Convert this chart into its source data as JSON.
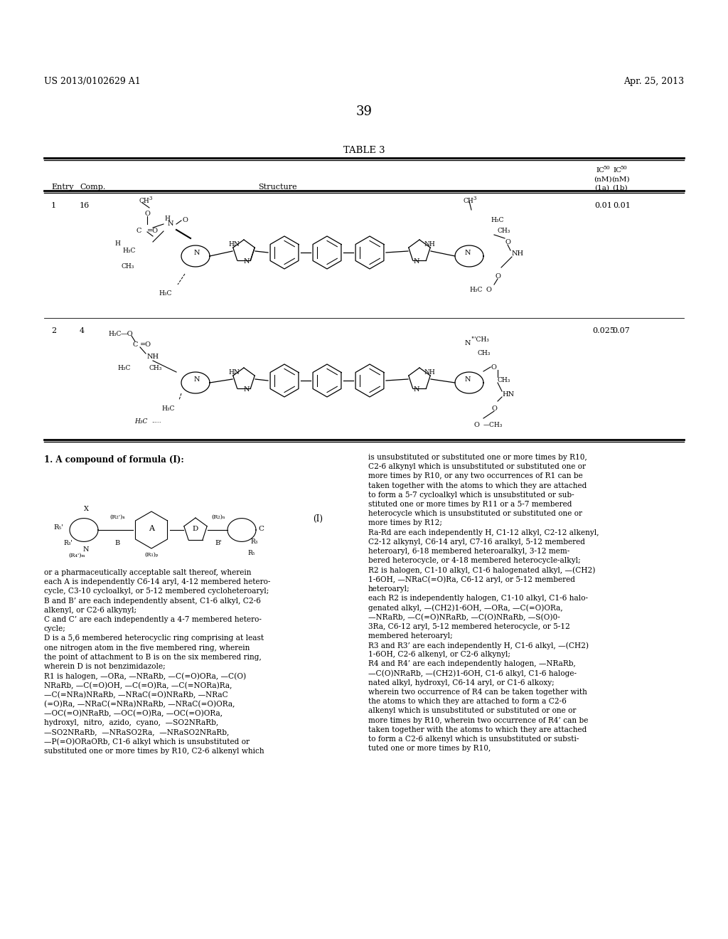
{
  "page_number": "39",
  "patent_number": "US 2013/0102629 A1",
  "patent_date": "Apr. 25, 2013",
  "table_title": "TABLE 3",
  "background_color": "#ffffff",
  "text_color": "#000000",
  "row1_entry": "1",
  "row1_comp": "16",
  "row1_ic50_1a": "0.01",
  "row1_ic50_1b": "0.01",
  "row2_entry": "2",
  "row2_comp": "4",
  "row2_ic50_1a": "0.025",
  "row2_ic50_1b": "0.07",
  "claim_title": "1. A compound of formula (I):",
  "formula_label": "(I)",
  "col1_lines": [
    "or a pharmaceutically acceptable salt thereof, wherein",
    "each A is independently C6-14 aryl, 4-12 membered hetero-",
    "cycle, C3-10 cycloalkyl, or 5-12 membered cycloheteroaryl;",
    "B and B’ are each independently absent, C1-6 alkyl, C2-6",
    "alkenyl, or C2-6 alkynyl;",
    "C and C’ are each independently a 4-7 membered hetero-",
    "cycle;",
    "D is a 5,6 membered heterocyclic ring comprising at least",
    "one nitrogen atom in the five membered ring, wherein",
    "the point of attachment to B is on the six membered ring,",
    "wherein D is not benzimidazole;",
    "R1 is halogen, —ORa, —NRaRb, —C(=O)ORa, —C(O)",
    "NRaRb, —C(=O)OH, —C(=O)Ra, —C(=NORa)Ra,",
    "—C(=NRa)NRaRb, —NRaC(=O)NRaRb, —NRaC",
    "(=O)Ra, —NRaC(=NRa)NRaRb, —NRaC(=O)ORa,",
    "—OC(=O)NRaRb, —OC(=O)Ra, —OC(=O)ORa,",
    "hydroxyl,  nitro,  azido,  cyano,  —SO2NRaRb,",
    "—SO2NRaRb,  —NRaSO2Ra,  —NRaSO2NRaRb,",
    "—P(=O)ORaORb, C1-6 alkyl which is unsubstituted or",
    "substituted one or more times by R10, C2-6 alkenyl which"
  ],
  "col2_lines": [
    "is unsubstituted or substituted one or more times by R10,",
    "C2-6 alkynyl which is unsubstituted or substituted one or",
    "more times by R10, or any two occurrences of R1 can be",
    "taken together with the atoms to which they are attached",
    "to form a 5-7 cycloalkyl which is unsubstituted or sub-",
    "stituted one or more times by R11 or a 5-7 membered",
    "heterocycle which is unsubstituted or substituted one or",
    "more times by R12;",
    "Ra-Rd are each independently H, C1-12 alkyl, C2-12 alkenyl,",
    "C2-12 alkynyl, C6-14 aryl, C7-16 aralkyl, 5-12 membered",
    "heteroaryl, 6-18 membered heteroaralkyl, 3-12 mem-",
    "bered heterocycle, or 4-18 membered heterocycle-alkyl;",
    "R2 is halogen, C1-10 alkyl, C1-6 halogenated alkyl, —(CH2)",
    "1-6OH, —NRaC(=O)Ra, C6-12 aryl, or 5-12 membered",
    "heteroaryl;",
    "each R2 is independently halogen, C1-10 alkyl, C1-6 halo-",
    "genated alkyl, —(CH2)1-6OH, —ORa, —C(=O)ORa,",
    "—NRaRb, —C(=O)NRaRb, —C(O)NRaRb, —S(O)0-",
    "3Ra, C6-12 aryl, 5-12 membered heterocycle, or 5-12",
    "membered heteroaryl;",
    "R3 and R3’ are each independently H, C1-6 alkyl, —(CH2)",
    "1-6OH, C2-6 alkenyl, or C2-6 alkynyl;",
    "R4 and R4’ are each independently halogen, —NRaRb,",
    "—C(O)NRaRb, —(CH2)1-6OH, C1-6 alkyl, C1-6 haloge-",
    "nated alkyl, hydroxyl, C6-14 aryl, or C1-6 alkoxy;",
    "wherein two occurrence of R4 can be taken together with",
    "the atoms to which they are attached to form a C2-6",
    "alkenyl which is unsubstituted or substituted or one or",
    "more times by R10, wherein two occurrence of R4’ can be",
    "taken together with the atoms to which they are attached",
    "to form a C2-6 alkenyl which is unsubstituted or substi-",
    "tuted one or more times by R10,"
  ]
}
